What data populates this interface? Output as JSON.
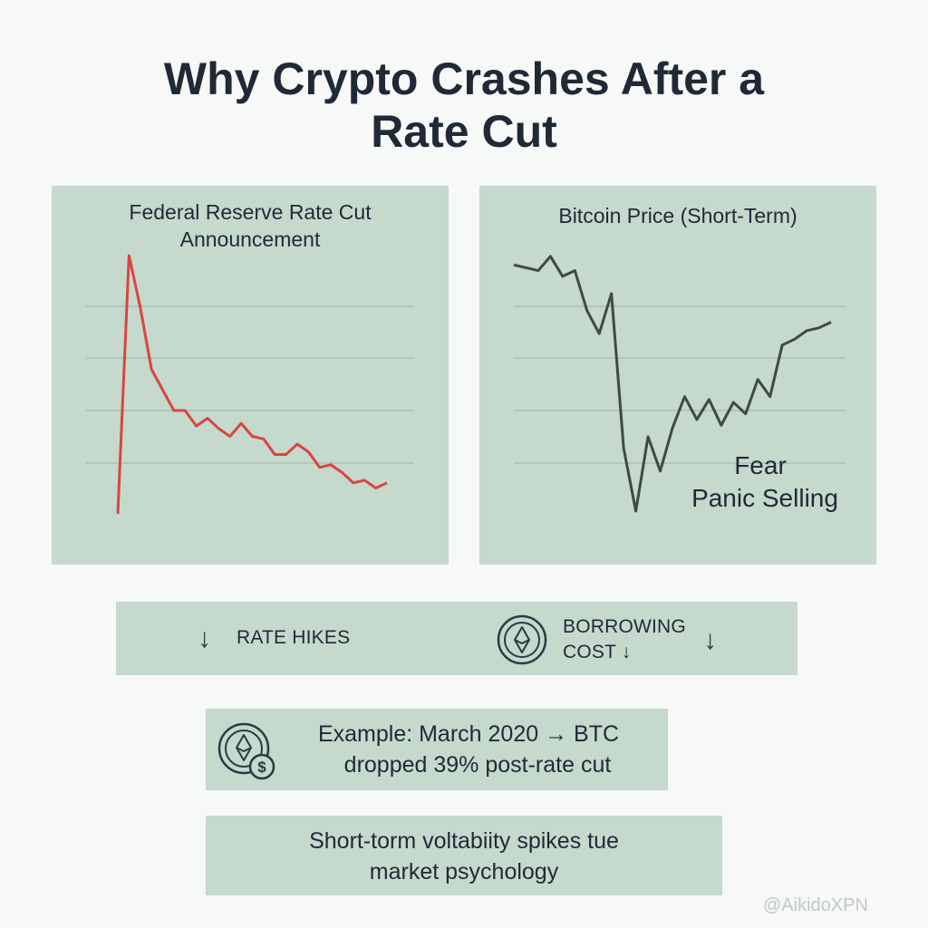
{
  "title_line1": "Why Crypto Crashes After a",
  "title_line2": "Rate Cut",
  "chart_data": [
    {
      "type": "line",
      "title_line1": "Federal Reserve Rate Cut",
      "title_line2": "Announcement",
      "color": "#d9463f",
      "grid": true,
      "x": [
        0,
        1,
        2,
        3,
        4,
        5,
        6,
        7,
        8,
        9,
        10,
        11,
        12,
        13,
        14,
        15,
        16,
        17,
        18,
        19,
        20,
        21,
        22,
        23,
        24
      ],
      "values": [
        0,
        100,
        80,
        56,
        48,
        40,
        40,
        34,
        37,
        33,
        30,
        35,
        30,
        29,
        23,
        23,
        27,
        24,
        18,
        19,
        16,
        12,
        13,
        10,
        12
      ]
    },
    {
      "type": "line",
      "title": "Bitcoin Price (Short-Term)",
      "color": "#3d4b48",
      "grid": true,
      "x": [
        0,
        1,
        2,
        3,
        4,
        5,
        6,
        7,
        8,
        9,
        10,
        11,
        12,
        13,
        14,
        15,
        16,
        17,
        18,
        19,
        20,
        21,
        22,
        23,
        24,
        25,
        26
      ],
      "values": [
        92,
        91,
        90,
        95,
        88,
        90,
        76,
        68,
        82,
        28,
        6,
        32,
        20,
        35,
        46,
        38,
        45,
        36,
        44,
        40,
        52,
        46,
        64,
        66,
        69,
        70,
        72
      ],
      "annotation_line1": "Fear",
      "annotation_line2": "Panic Selling"
    }
  ],
  "strip": {
    "left_arrow": "↓",
    "left_label": "RATE HIKES",
    "right_label_line1": "BORROWING",
    "right_label_line2": "COST ↓",
    "right_arrow": "↓"
  },
  "example": {
    "line1": "Example: March 2020 → BTC",
    "line2": "dropped 39% post-rate cut"
  },
  "psychology": {
    "line1": "Short-torm voltabiity spikes tue",
    "line2": "market psychology"
  },
  "watermark": "@AikidoXPN",
  "colors": {
    "panel": "#c5d9cd",
    "fed_line": "#d9463f",
    "btc_line": "#3d4b48",
    "text": "#1f2a36"
  }
}
